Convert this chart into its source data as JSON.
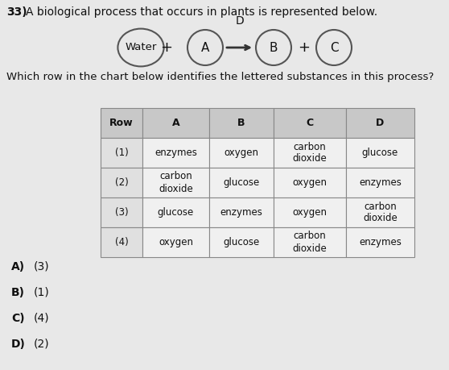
{
  "question_num": "33)",
  "question_text": "  A biological process that occurs in plants is represented below.",
  "sub_question": "Which row in the chart below identifies the lettered substances in this process?",
  "diagram": {
    "nodes": [
      "Water",
      "A",
      "B",
      "C"
    ],
    "D_label": "D"
  },
  "table": {
    "headers": [
      "Row",
      "A",
      "B",
      "C",
      "D"
    ],
    "rows": [
      [
        "(1)",
        "enzymes",
        "oxygen",
        "carbon\ndioxide",
        "glucose"
      ],
      [
        "(2)",
        "carbon\ndioxide",
        "glucose",
        "oxygen",
        "enzymes"
      ],
      [
        "(3)",
        "glucose",
        "enzymes",
        "oxygen",
        "carbon\ndioxide"
      ],
      [
        "(4)",
        "oxygen",
        "glucose",
        "carbon\ndioxide",
        "enzymes"
      ]
    ]
  },
  "answers": [
    [
      "A)",
      "(3)"
    ],
    [
      "B)",
      "(1)"
    ],
    [
      "C)",
      "(4)"
    ],
    [
      "D)",
      "(2)"
    ]
  ],
  "bg_color": "#e8e8e8",
  "table_header_bg": "#cccccc",
  "table_row_bg": "#f2f2f2",
  "table_row1_bg": "#e0e0e0",
  "table_border_color": "#888888",
  "font_color": "#111111",
  "circle_color": "#dddddd"
}
